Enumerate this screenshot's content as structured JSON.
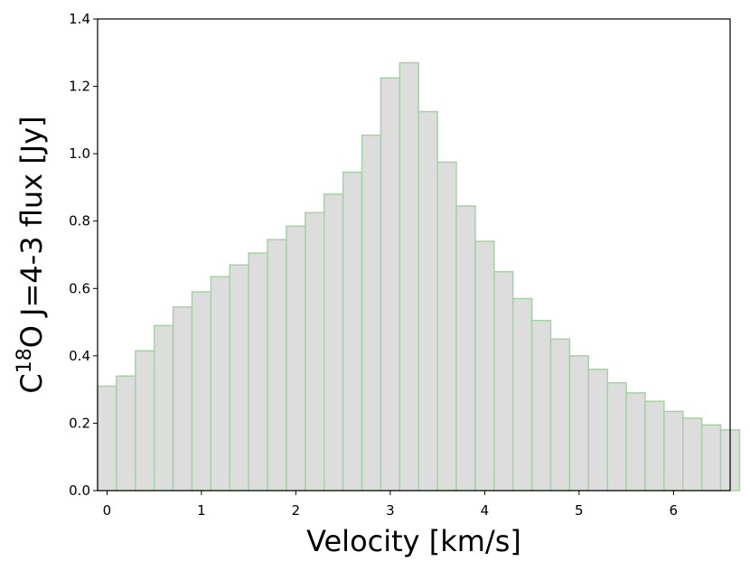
{
  "chart_data": {
    "type": "bar",
    "title": "",
    "xlabel": "Velocity [km/s]",
    "ylabel": {
      "prefix": "C",
      "superscript": "18",
      "suffix": "O J=4-3 flux [Jy]"
    },
    "xlim": [
      -0.1,
      6.6
    ],
    "ylim": [
      0.0,
      1.4
    ],
    "x_ticks": [
      0,
      1,
      2,
      3,
      4,
      5,
      6
    ],
    "x_tick_labels": [
      "0",
      "1",
      "2",
      "3",
      "4",
      "5",
      "6"
    ],
    "y_ticks": [
      0.0,
      0.2,
      0.4,
      0.6,
      0.8,
      1.0,
      1.2,
      1.4
    ],
    "y_tick_labels": [
      "0.0",
      "0.2",
      "0.4",
      "0.6",
      "0.8",
      "1.0",
      "1.2",
      "1.4"
    ],
    "bin_width": 0.2,
    "x": [
      -0.1,
      0.1,
      0.3,
      0.5,
      0.7,
      0.9,
      1.1,
      1.3,
      1.5,
      1.7,
      1.9,
      2.1,
      2.3,
      2.5,
      2.7,
      2.9,
      3.1,
      3.3,
      3.5,
      3.7,
      3.9,
      4.1,
      4.3,
      4.5,
      4.7,
      4.9,
      5.1,
      5.3,
      5.5,
      5.7,
      5.9,
      6.1,
      6.3,
      6.5
    ],
    "values": [
      0.31,
      0.34,
      0.415,
      0.49,
      0.545,
      0.59,
      0.635,
      0.67,
      0.705,
      0.745,
      0.785,
      0.825,
      0.88,
      0.945,
      1.055,
      1.225,
      1.27,
      1.125,
      0.975,
      0.845,
      0.74,
      0.65,
      0.57,
      0.505,
      0.45,
      0.4,
      0.36,
      0.32,
      0.29,
      0.265,
      0.235,
      0.215,
      0.195,
      0.18
    ],
    "colors": {
      "bar_fill": "#dddddd",
      "bar_edge": "#a8d0a8"
    },
    "grid": false,
    "legend": "none"
  }
}
